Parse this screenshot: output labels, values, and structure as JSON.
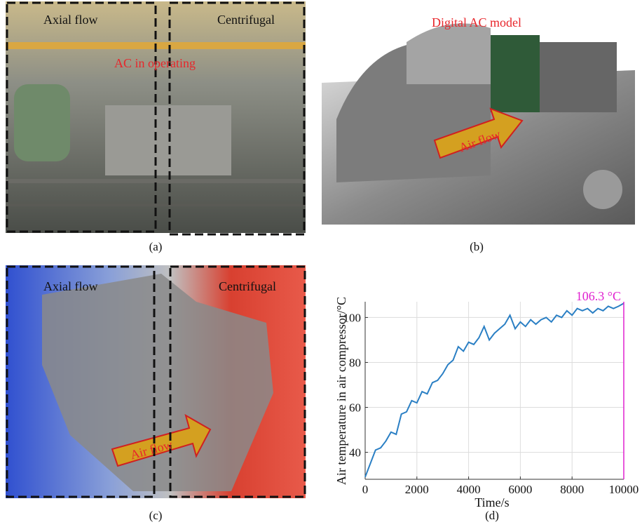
{
  "panels": [
    {
      "caption": "(a)",
      "texts": [
        "Axial flow",
        "Centrifugal",
        "AC in operating"
      ]
    },
    {
      "caption": "(b)",
      "texts": [
        "Digital AC model",
        "Air flow"
      ]
    },
    {
      "caption": "(c)",
      "texts": [
        "Axial flow",
        "Centrifugal",
        "Air flow"
      ]
    }
  ],
  "chart_data": {
    "type": "line",
    "caption": "(d)",
    "x_label": "Time/s",
    "y_label": "Air temperature in air compressor/°C",
    "x": [
      0,
      200,
      400,
      600,
      800,
      1000,
      1200,
      1400,
      1600,
      1800,
      2000,
      2200,
      2400,
      2600,
      2800,
      3000,
      3200,
      3400,
      3600,
      3800,
      4000,
      4200,
      4400,
      4600,
      4800,
      5000,
      5200,
      5400,
      5600,
      5800,
      6000,
      6200,
      6400,
      6600,
      6800,
      7000,
      7200,
      7400,
      7600,
      7800,
      8000,
      8200,
      8400,
      8600,
      8800,
      9000,
      9200,
      9400,
      9600,
      9800,
      10000
    ],
    "values": [
      29,
      35,
      41,
      42,
      45,
      49,
      48,
      57,
      58,
      63,
      62,
      67,
      66,
      71,
      72,
      75,
      79,
      81,
      87,
      85,
      89,
      88,
      91,
      96,
      90,
      93,
      95,
      97,
      101,
      95,
      98,
      96,
      99,
      97,
      99,
      100,
      98,
      101,
      100,
      103,
      101,
      104,
      103,
      104,
      102,
      104,
      103,
      105,
      104,
      105,
      106.3
    ],
    "color": "#2a7fc4",
    "xlim": [
      0,
      10000
    ],
    "xticks": [
      0,
      2000,
      4000,
      6000,
      8000,
      10000
    ],
    "ylim": [
      28,
      107
    ],
    "yticks": [
      40,
      60,
      80,
      100
    ],
    "grid": true,
    "annotation": {
      "text": "106.3 °C",
      "x": 10000,
      "color": "#e020d0"
    }
  }
}
